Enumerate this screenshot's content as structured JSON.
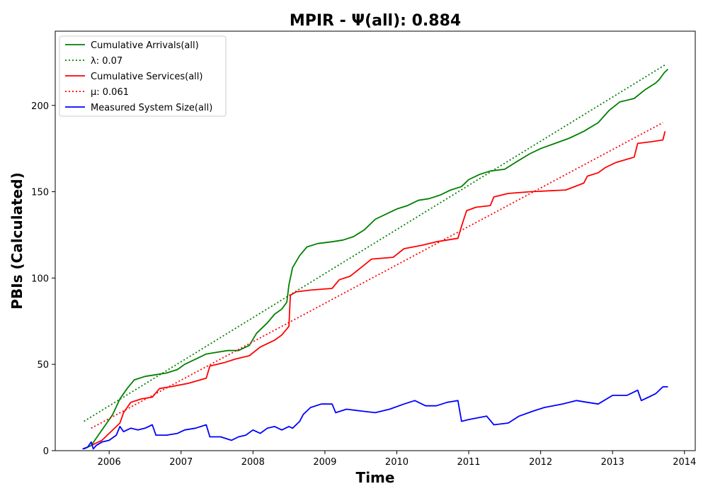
{
  "chart_data": {
    "type": "line",
    "title": "MPIR -  Ψ(all): 0.884",
    "xlabel": "Time",
    "ylabel": "PBIs (Calculated)",
    "xlim": [
      2005.25,
      2014.15
    ],
    "ylim": [
      0,
      243
    ],
    "x_ticks": [
      2006,
      2007,
      2008,
      2009,
      2010,
      2011,
      2012,
      2013,
      2014
    ],
    "y_ticks": [
      0,
      50,
      100,
      150,
      200
    ],
    "grid": false,
    "legend_position": "top-left",
    "series": [
      {
        "name": "Cumulative Arrivals(all)",
        "color": "#008000",
        "style": "solid",
        "points": [
          [
            2005.65,
            1
          ],
          [
            2005.75,
            3
          ],
          [
            2005.85,
            9
          ],
          [
            2005.95,
            15
          ],
          [
            2006.05,
            21
          ],
          [
            2006.15,
            30
          ],
          [
            2006.25,
            36
          ],
          [
            2006.35,
            41
          ],
          [
            2006.5,
            43
          ],
          [
            2006.65,
            44
          ],
          [
            2006.8,
            45
          ],
          [
            2006.95,
            47
          ],
          [
            2007.05,
            50
          ],
          [
            2007.2,
            53
          ],
          [
            2007.35,
            56
          ],
          [
            2007.5,
            57
          ],
          [
            2007.65,
            58
          ],
          [
            2007.8,
            58
          ],
          [
            2007.95,
            61
          ],
          [
            2008.05,
            68
          ],
          [
            2008.2,
            74
          ],
          [
            2008.3,
            79
          ],
          [
            2008.4,
            82
          ],
          [
            2008.47,
            86
          ],
          [
            2008.5,
            96
          ],
          [
            2008.55,
            106
          ],
          [
            2008.65,
            113
          ],
          [
            2008.75,
            118
          ],
          [
            2008.9,
            120
          ],
          [
            2009.1,
            121
          ],
          [
            2009.25,
            122
          ],
          [
            2009.4,
            124
          ],
          [
            2009.55,
            128
          ],
          [
            2009.7,
            134
          ],
          [
            2009.85,
            137
          ],
          [
            2010.0,
            140
          ],
          [
            2010.15,
            142
          ],
          [
            2010.3,
            145
          ],
          [
            2010.45,
            146
          ],
          [
            2010.6,
            148
          ],
          [
            2010.75,
            151
          ],
          [
            2010.9,
            153
          ],
          [
            2011.0,
            157
          ],
          [
            2011.15,
            160
          ],
          [
            2011.3,
            162
          ],
          [
            2011.5,
            163
          ],
          [
            2011.65,
            167
          ],
          [
            2011.85,
            172
          ],
          [
            2012.0,
            175
          ],
          [
            2012.2,
            178
          ],
          [
            2012.4,
            181
          ],
          [
            2012.6,
            185
          ],
          [
            2012.8,
            190
          ],
          [
            2012.95,
            197
          ],
          [
            2013.1,
            202
          ],
          [
            2013.3,
            204
          ],
          [
            2013.45,
            209
          ],
          [
            2013.6,
            213
          ],
          [
            2013.65,
            215
          ],
          [
            2013.72,
            219
          ],
          [
            2013.77,
            221
          ]
        ]
      },
      {
        "name": "λ: 0.07",
        "color": "#008000",
        "style": "dotted",
        "points": [
          [
            2005.65,
            17
          ],
          [
            2013.75,
            224
          ]
        ]
      },
      {
        "name": "Cumulative Services(all)",
        "color": "#ff0000",
        "style": "solid",
        "points": [
          [
            2005.75,
            3
          ],
          [
            2005.9,
            6
          ],
          [
            2006.0,
            10
          ],
          [
            2006.15,
            16
          ],
          [
            2006.2,
            22
          ],
          [
            2006.3,
            28
          ],
          [
            2006.45,
            30
          ],
          [
            2006.6,
            31
          ],
          [
            2006.7,
            36
          ],
          [
            2006.85,
            37
          ],
          [
            2007.1,
            39
          ],
          [
            2007.35,
            42
          ],
          [
            2007.4,
            49
          ],
          [
            2007.6,
            51
          ],
          [
            2007.75,
            53
          ],
          [
            2007.95,
            55
          ],
          [
            2008.1,
            60
          ],
          [
            2008.3,
            64
          ],
          [
            2008.4,
            67
          ],
          [
            2008.5,
            72
          ],
          [
            2008.52,
            90
          ],
          [
            2008.6,
            92
          ],
          [
            2008.8,
            93
          ],
          [
            2009.1,
            94
          ],
          [
            2009.2,
            99
          ],
          [
            2009.35,
            101
          ],
          [
            2009.5,
            106
          ],
          [
            2009.65,
            111
          ],
          [
            2009.95,
            112
          ],
          [
            2010.1,
            117
          ],
          [
            2010.35,
            119
          ],
          [
            2010.55,
            121
          ],
          [
            2010.85,
            123
          ],
          [
            2010.9,
            130
          ],
          [
            2010.97,
            139
          ],
          [
            2011.1,
            141
          ],
          [
            2011.3,
            142
          ],
          [
            2011.35,
            147
          ],
          [
            2011.55,
            149
          ],
          [
            2011.85,
            150
          ],
          [
            2012.35,
            151
          ],
          [
            2012.6,
            155
          ],
          [
            2012.65,
            159
          ],
          [
            2012.8,
            161
          ],
          [
            2012.9,
            164
          ],
          [
            2013.05,
            167
          ],
          [
            2013.3,
            170
          ],
          [
            2013.35,
            178
          ],
          [
            2013.55,
            179
          ],
          [
            2013.7,
            180
          ],
          [
            2013.73,
            185
          ]
        ]
      },
      {
        "name": "μ: 0.061",
        "color": "#ff0000",
        "style": "dotted",
        "points": [
          [
            2005.75,
            13
          ],
          [
            2013.7,
            190
          ]
        ]
      },
      {
        "name": "Measured System Size(all)",
        "color": "#0000ff",
        "style": "solid",
        "points": [
          [
            2005.63,
            1
          ],
          [
            2005.7,
            2
          ],
          [
            2005.75,
            5
          ],
          [
            2005.78,
            1
          ],
          [
            2005.82,
            3
          ],
          [
            2005.9,
            5
          ],
          [
            2006.0,
            6
          ],
          [
            2006.1,
            9
          ],
          [
            2006.15,
            14
          ],
          [
            2006.2,
            11
          ],
          [
            2006.3,
            13
          ],
          [
            2006.4,
            12
          ],
          [
            2006.5,
            13
          ],
          [
            2006.6,
            15
          ],
          [
            2006.65,
            9
          ],
          [
            2006.8,
            9
          ],
          [
            2006.95,
            10
          ],
          [
            2007.05,
            12
          ],
          [
            2007.2,
            13
          ],
          [
            2007.35,
            15
          ],
          [
            2007.4,
            8
          ],
          [
            2007.55,
            8
          ],
          [
            2007.7,
            6
          ],
          [
            2007.8,
            8
          ],
          [
            2007.9,
            9
          ],
          [
            2008.0,
            12
          ],
          [
            2008.1,
            10
          ],
          [
            2008.2,
            13
          ],
          [
            2008.3,
            14
          ],
          [
            2008.4,
            12
          ],
          [
            2008.5,
            14
          ],
          [
            2008.55,
            13
          ],
          [
            2008.65,
            17
          ],
          [
            2008.7,
            21
          ],
          [
            2008.8,
            25
          ],
          [
            2008.95,
            27
          ],
          [
            2009.1,
            27
          ],
          [
            2009.15,
            22
          ],
          [
            2009.3,
            24
          ],
          [
            2009.5,
            23
          ],
          [
            2009.7,
            22
          ],
          [
            2009.9,
            24
          ],
          [
            2010.1,
            27
          ],
          [
            2010.25,
            29
          ],
          [
            2010.4,
            26
          ],
          [
            2010.55,
            26
          ],
          [
            2010.7,
            28
          ],
          [
            2010.85,
            29
          ],
          [
            2010.9,
            17
          ],
          [
            2011.0,
            18
          ],
          [
            2011.25,
            20
          ],
          [
            2011.35,
            15
          ],
          [
            2011.55,
            16
          ],
          [
            2011.7,
            20
          ],
          [
            2011.9,
            23
          ],
          [
            2012.05,
            25
          ],
          [
            2012.3,
            27
          ],
          [
            2012.5,
            29
          ],
          [
            2012.65,
            28
          ],
          [
            2012.8,
            27
          ],
          [
            2013.0,
            32
          ],
          [
            2013.2,
            32
          ],
          [
            2013.35,
            35
          ],
          [
            2013.4,
            29
          ],
          [
            2013.5,
            31
          ],
          [
            2013.6,
            33
          ],
          [
            2013.7,
            37
          ],
          [
            2013.77,
            37
          ]
        ]
      }
    ]
  }
}
